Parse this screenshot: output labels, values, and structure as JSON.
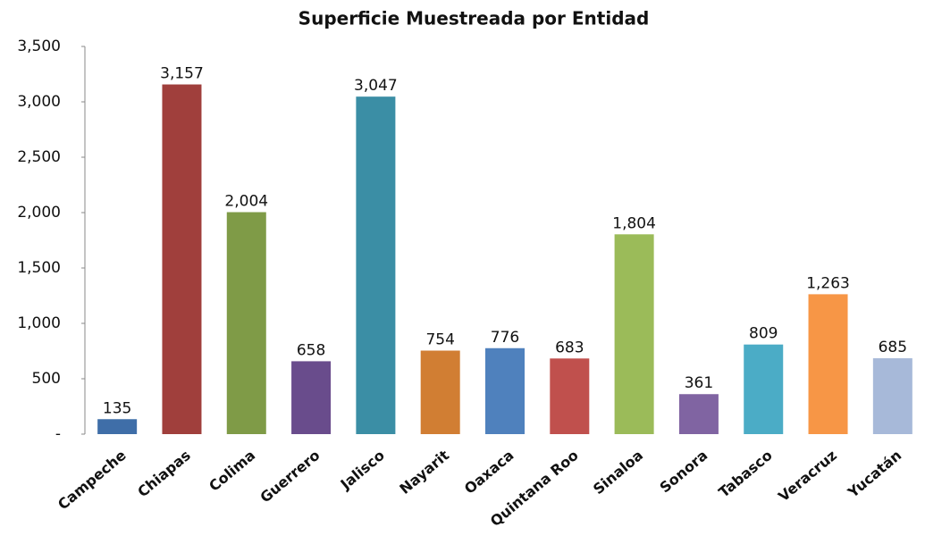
{
  "chart_data": {
    "type": "bar",
    "title": "Superficie Muestreada por Entidad",
    "categories": [
      "Campeche",
      "Chiapas",
      "Colima",
      "Guerrero",
      "Jalisco",
      "Nayarit",
      "Oaxaca",
      "Quintana Roo",
      "Sinaloa",
      "Sonora",
      "Tabasco",
      "Veracruz",
      "Yucatán"
    ],
    "values": [
      135,
      3157,
      2004,
      658,
      3047,
      754,
      776,
      683,
      1804,
      361,
      809,
      1263,
      685
    ],
    "value_labels": [
      "135",
      "3,157",
      "2,004",
      "658",
      "3,047",
      "754",
      "776",
      "683",
      "1,804",
      "361",
      "809",
      "1,263",
      "685"
    ],
    "colors": [
      "#3f6ea8",
      "#a03f3c",
      "#7f9b47",
      "#694c8c",
      "#3b8ea5",
      "#d17e33",
      "#4f81bd",
      "#c0504d",
      "#9bbb59",
      "#8064a2",
      "#4bacc6",
      "#f79646",
      "#a7b9d9"
    ],
    "ylim": [
      0,
      3500
    ],
    "yticks": [
      {
        "value": 0,
        "label": "-"
      },
      500,
      {
        "value": 1000,
        "label": "1,000"
      },
      {
        "value": 1500,
        "label": "1,500"
      },
      {
        "value": 2000,
        "label": "2,000"
      },
      {
        "value": 2500,
        "label": "2,500"
      },
      {
        "value": 3000,
        "label": "3,000"
      },
      {
        "value": 3500,
        "label": "3,500"
      }
    ],
    "grid": false
  }
}
